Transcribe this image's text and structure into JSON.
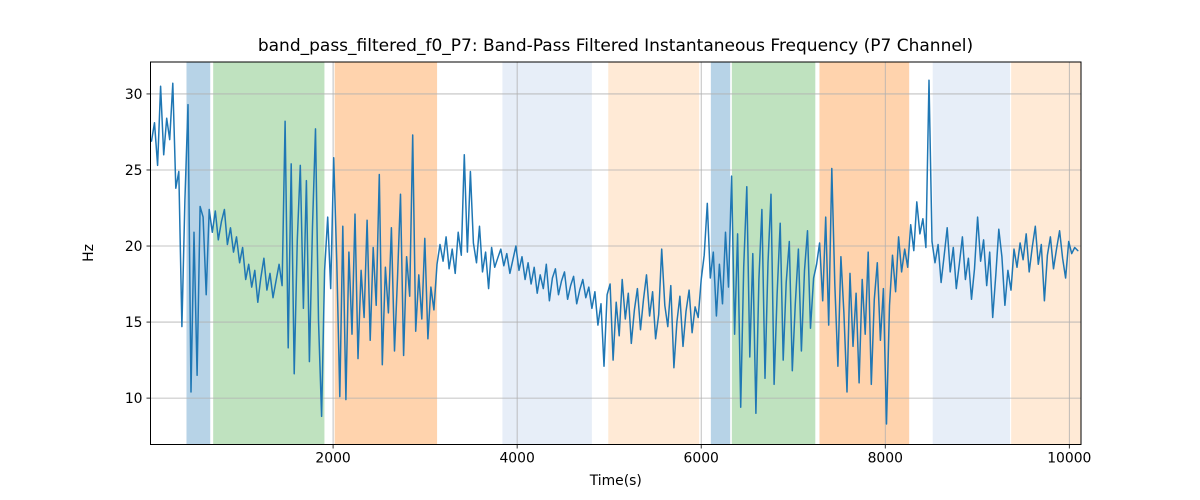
{
  "chart_data": {
    "type": "line",
    "title": "band_pass_filtered_f0_P7: Band-Pass Filtered Instantaneous Frequency (P7 Channel)",
    "xlabel": "Time(s)",
    "ylabel": "Hz",
    "xlim": [
      16,
      10127
    ],
    "ylim": [
      6.95,
      32.1
    ],
    "x_ticks": [
      2000,
      4000,
      6000,
      8000,
      10000
    ],
    "y_ticks": [
      10,
      15,
      20,
      25,
      30
    ],
    "grid": true,
    "legend": "none",
    "line_color": "#1f77b4",
    "line_width": 1.5,
    "grid_color": "#b0b0b0",
    "bands": [
      {
        "stage": "blue",
        "start": 407,
        "end": 665,
        "color": "rgba(31,119,180,0.32)"
      },
      {
        "stage": "green",
        "start": 697,
        "end": 1906,
        "color": "rgba(44,160,44,0.30)"
      },
      {
        "stage": "orange",
        "start": 2017,
        "end": 3130,
        "color": "rgba(255,127,14,0.34)"
      },
      {
        "stage": "light-blue",
        "start": 3840,
        "end": 4812,
        "color": "rgba(174,199,232,0.30)"
      },
      {
        "stage": "light-orange",
        "start": 4990,
        "end": 5978,
        "color": "rgba(255,187,120,0.30)"
      },
      {
        "stage": "blue",
        "start": 6105,
        "end": 6315,
        "color": "rgba(31,119,180,0.32)"
      },
      {
        "stage": "green",
        "start": 6333,
        "end": 7240,
        "color": "rgba(44,160,44,0.30)"
      },
      {
        "stage": "orange",
        "start": 7285,
        "end": 8260,
        "color": "rgba(255,127,14,0.34)"
      },
      {
        "stage": "light-blue",
        "start": 8516,
        "end": 9356,
        "color": "rgba(174,199,232,0.30)"
      },
      {
        "stage": "light-orange",
        "start": 9368,
        "end": 10127,
        "color": "rgba(255,187,120,0.30)"
      }
    ],
    "series": [
      {
        "name": "band_pass_filtered_f0_P7",
        "x_start": 27,
        "x_step": 33,
        "values": [
          26.9,
          28.1,
          25.3,
          30.5,
          26.0,
          28.4,
          27.0,
          30.7,
          23.8,
          24.9,
          14.7,
          23.0,
          29.3,
          10.4,
          20.9,
          11.5,
          22.6,
          21.9,
          16.8,
          22.4,
          20.9,
          22.3,
          20.4,
          21.6,
          22.4,
          20.1,
          21.2,
          19.6,
          20.6,
          18.9,
          19.9,
          17.8,
          18.8,
          17.3,
          18.4,
          16.3,
          17.9,
          19.2,
          17.1,
          18.2,
          16.6,
          17.7,
          18.8,
          17.4,
          28.2,
          13.3,
          25.4,
          11.6,
          20.4,
          25.3,
          15.9,
          24.3,
          12.4,
          21.3,
          27.7,
          15.1,
          8.8,
          18.4,
          21.9,
          17.2,
          25.8,
          18.9,
          10.1,
          21.3,
          9.9,
          19.6,
          14.2,
          22.1,
          12.6,
          18.4,
          15.3,
          21.7,
          13.8,
          19.9,
          16.1,
          24.7,
          12.2,
          18.6,
          15.6,
          21.2,
          13.1,
          17.9,
          23.4,
          12.8,
          19.3,
          16.7,
          27.3,
          14.4,
          18.1,
          15.2,
          20.5,
          13.9,
          17.3,
          15.8,
          18.8,
          20.1,
          19.0,
          20.6,
          18.5,
          19.8,
          18.2,
          20.9,
          19.4,
          26.0,
          19.6,
          24.9,
          20.2,
          18.9,
          21.3,
          18.3,
          19.6,
          17.2,
          19.9,
          18.6,
          19.2,
          19.8,
          18.7,
          19.5,
          18.2,
          19.1,
          20.0,
          18.4,
          19.3,
          17.8,
          18.9,
          17.5,
          18.6,
          16.9,
          18.1,
          17.2,
          18.8,
          16.4,
          17.9,
          18.5,
          16.8,
          17.7,
          18.3,
          16.5,
          17.4,
          18.0,
          16.2,
          17.1,
          17.8,
          16.6,
          17.3,
          15.9,
          17.0,
          14.8,
          16.2,
          12.1,
          16.8,
          17.5,
          12.5,
          16.3,
          14.1,
          17.8,
          15.2,
          16.9,
          13.6,
          15.8,
          17.2,
          14.5,
          16.5,
          18.1,
          15.4,
          17.0,
          13.9,
          15.5,
          19.8,
          16.1,
          14.7,
          17.4,
          12.0,
          15.0,
          16.7,
          13.4,
          15.7,
          17.1,
          14.3,
          16.0,
          15.3,
          17.8,
          19.4,
          22.8,
          17.9,
          19.6,
          15.4,
          18.8,
          16.2,
          20.9,
          17.3,
          24.6,
          14.2,
          20.8,
          9.4,
          18.6,
          23.9,
          12.7,
          19.5,
          9.0,
          17.8,
          22.4,
          11.3,
          18.9,
          23.4,
          10.9,
          16.8,
          21.5,
          12.5,
          17.6,
          20.3,
          11.8,
          16.2,
          19.8,
          13.1,
          18.4,
          21.0,
          14.6,
          17.9,
          18.8,
          20.2,
          16.4,
          21.9,
          14.8,
          25.1,
          17.5,
          12.1,
          19.3,
          15.6,
          10.4,
          18.2,
          13.4,
          16.9,
          11.0,
          17.8,
          14.2,
          19.6,
          10.9,
          16.5,
          18.9,
          13.8,
          17.2,
          8.3,
          16.1,
          19.4,
          17.0,
          20.6,
          18.3,
          19.8,
          18.6,
          21.4,
          19.7,
          22.9,
          20.8,
          21.8,
          19.9,
          30.9,
          20.3,
          18.9,
          20.1,
          17.6,
          19.4,
          21.2,
          18.3,
          19.9,
          17.2,
          18.8,
          20.6,
          17.8,
          19.2,
          16.5,
          18.5,
          21.9,
          19.0,
          20.4,
          17.4,
          19.6,
          15.3,
          18.1,
          21.1,
          19.3,
          16.1,
          18.4,
          17.1,
          19.8,
          18.6,
          20.2,
          19.1,
          20.8,
          18.3,
          19.9,
          21.3,
          18.8,
          20.1,
          16.4,
          19.4,
          20.6,
          18.5,
          19.8,
          21.0,
          19.2,
          17.9,
          20.3,
          19.5,
          19.9,
          19.7
        ]
      }
    ]
  }
}
